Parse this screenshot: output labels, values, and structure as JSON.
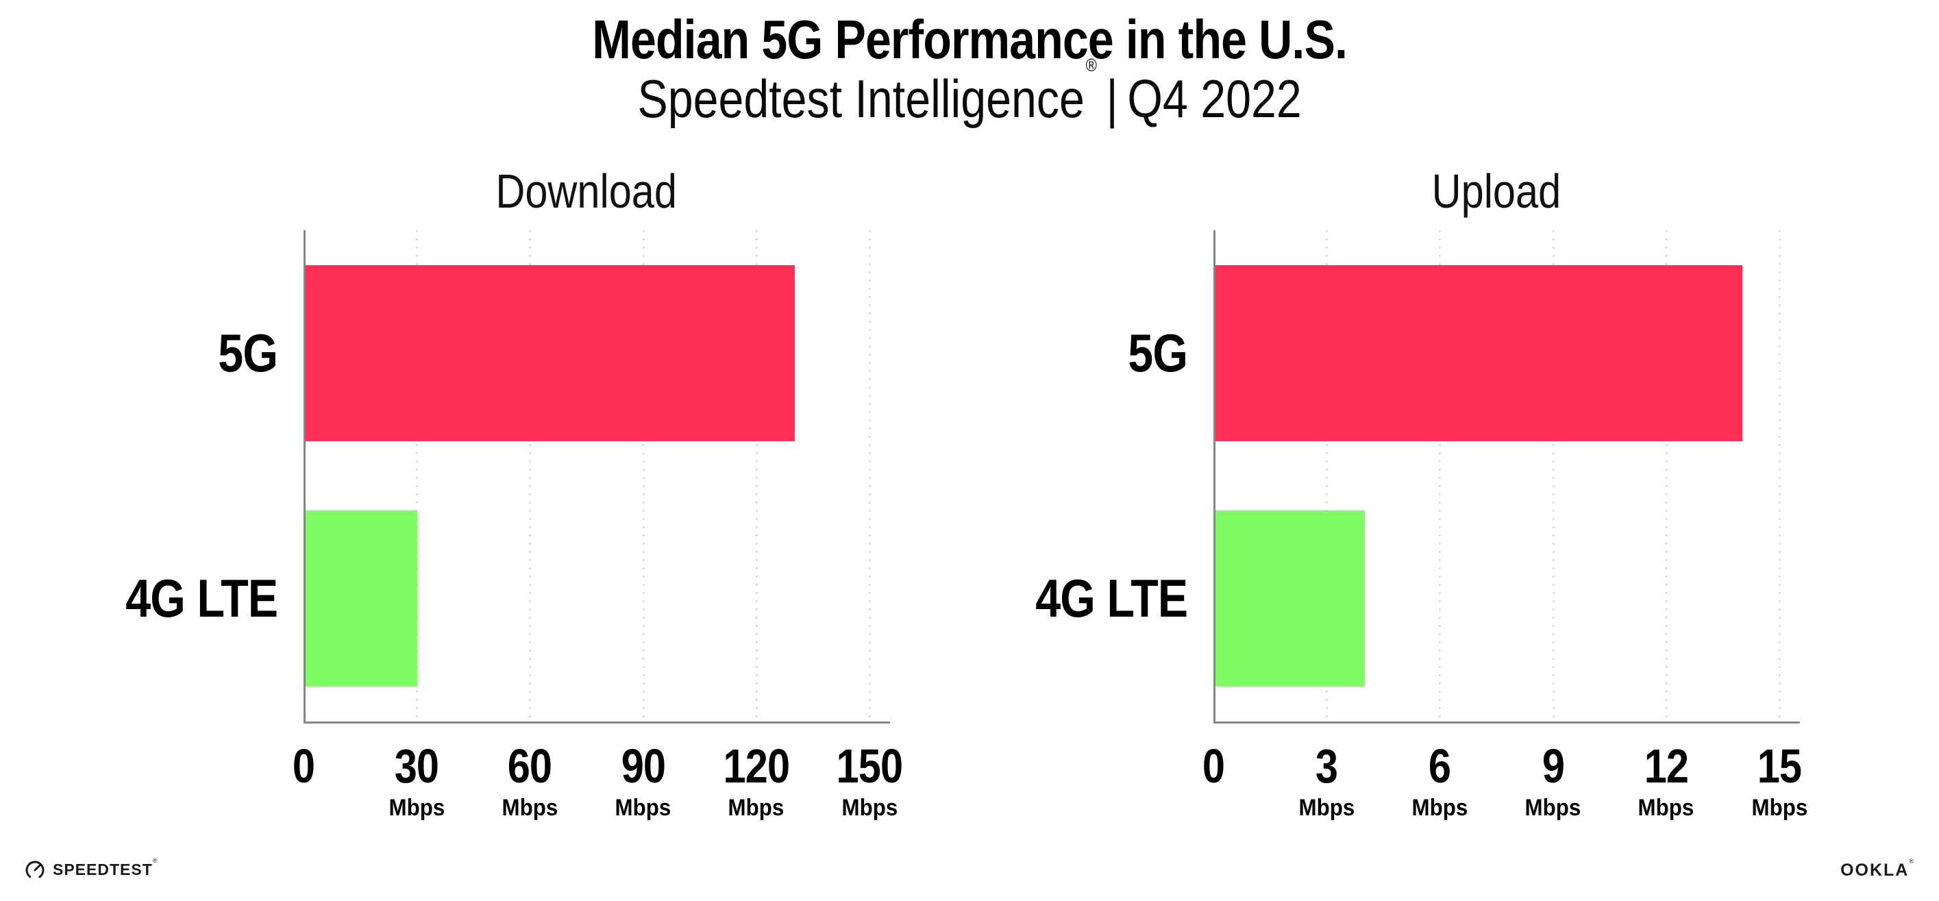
{
  "header": {
    "title": "Median 5G Performance in the U.S.",
    "subtitle_brand": "Speedtest Intelligence",
    "subtitle_reg_mark": "®",
    "subtitle_separator": "|",
    "subtitle_period": "Q4 2022"
  },
  "chart_data": [
    {
      "type": "bar",
      "orientation": "horizontal",
      "title": "Download",
      "categories": [
        "5G",
        "4G LTE"
      ],
      "values": [
        130,
        30
      ],
      "unit": "Mbps",
      "xlim": [
        0,
        150
      ],
      "xticks": [
        0,
        30,
        60,
        90,
        120,
        150
      ],
      "tick_unit": "Mbps",
      "bar_colors": [
        "#FF2E55",
        "#7EFB64"
      ],
      "grid": "dotted-vertical",
      "legend": "none"
    },
    {
      "type": "bar",
      "orientation": "horizontal",
      "title": "Upload",
      "categories": [
        "5G",
        "4G LTE"
      ],
      "values": [
        14,
        4
      ],
      "unit": "Mbps",
      "xlim": [
        0,
        15
      ],
      "xticks": [
        0,
        3,
        6,
        9,
        12,
        15
      ],
      "tick_unit": "Mbps",
      "bar_colors": [
        "#FF2E55",
        "#7EFB64"
      ],
      "grid": "dotted-vertical",
      "legend": "none"
    }
  ],
  "footer": {
    "speedtest_logo_text": "SPEEDTEST",
    "speedtest_trademark": "®",
    "ookla_logo_text": "OOKLA",
    "ookla_trademark": "®"
  },
  "colors": {
    "bar_5g": "#FF2E55",
    "bar_4g_lte": "#7EFB64",
    "axis_line": "#85858d",
    "gridline": "#d9ddea",
    "text": "#000000",
    "background": "#ffffff"
  }
}
